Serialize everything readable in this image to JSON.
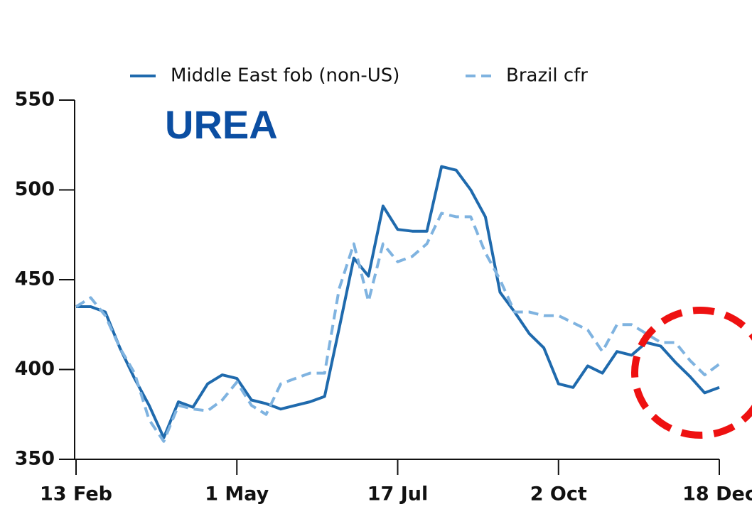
{
  "chart_data": {
    "type": "line",
    "annotation": "UREA",
    "categories": [
      "13 Feb",
      null,
      null,
      null,
      null,
      null,
      null,
      null,
      null,
      null,
      null,
      "1 May",
      null,
      null,
      null,
      null,
      null,
      null,
      null,
      null,
      null,
      null,
      "17 Jul",
      null,
      null,
      null,
      null,
      null,
      null,
      null,
      null,
      null,
      null,
      "2 Oct",
      null,
      null,
      null,
      null,
      null,
      null,
      null,
      null,
      null,
      null,
      "18 Dec"
    ],
    "series": [
      {
        "name": "Middle East fob (non-US)",
        "color": "#1f6aad",
        "dash": "solid",
        "values": [
          435,
          435,
          432,
          412,
          395,
          380,
          362,
          382,
          379,
          392,
          397,
          395,
          383,
          381,
          378,
          380,
          382,
          385,
          423,
          462,
          452,
          491,
          478,
          477,
          477,
          513,
          511,
          500,
          485,
          443,
          432,
          420,
          412,
          392,
          390,
          402,
          398,
          410,
          408,
          415,
          413,
          404,
          396,
          387,
          390
        ]
      },
      {
        "name": "Brazil cfr",
        "color": "#7fb3e0",
        "dash": "dashed",
        "values": [
          435,
          440,
          430,
          412,
          398,
          372,
          360,
          380,
          378,
          377,
          383,
          393,
          380,
          375,
          392,
          395,
          398,
          398,
          445,
          470,
          438,
          470,
          460,
          463,
          470,
          487,
          485,
          485,
          465,
          450,
          432,
          432,
          430,
          430,
          426,
          422,
          410,
          425,
          425,
          420,
          415,
          415,
          405,
          397,
          403
        ]
      }
    ],
    "ylim": [
      350,
      550
    ],
    "yticks": [
      350,
      400,
      450,
      500,
      550
    ],
    "legend": "top",
    "grid": false
  }
}
